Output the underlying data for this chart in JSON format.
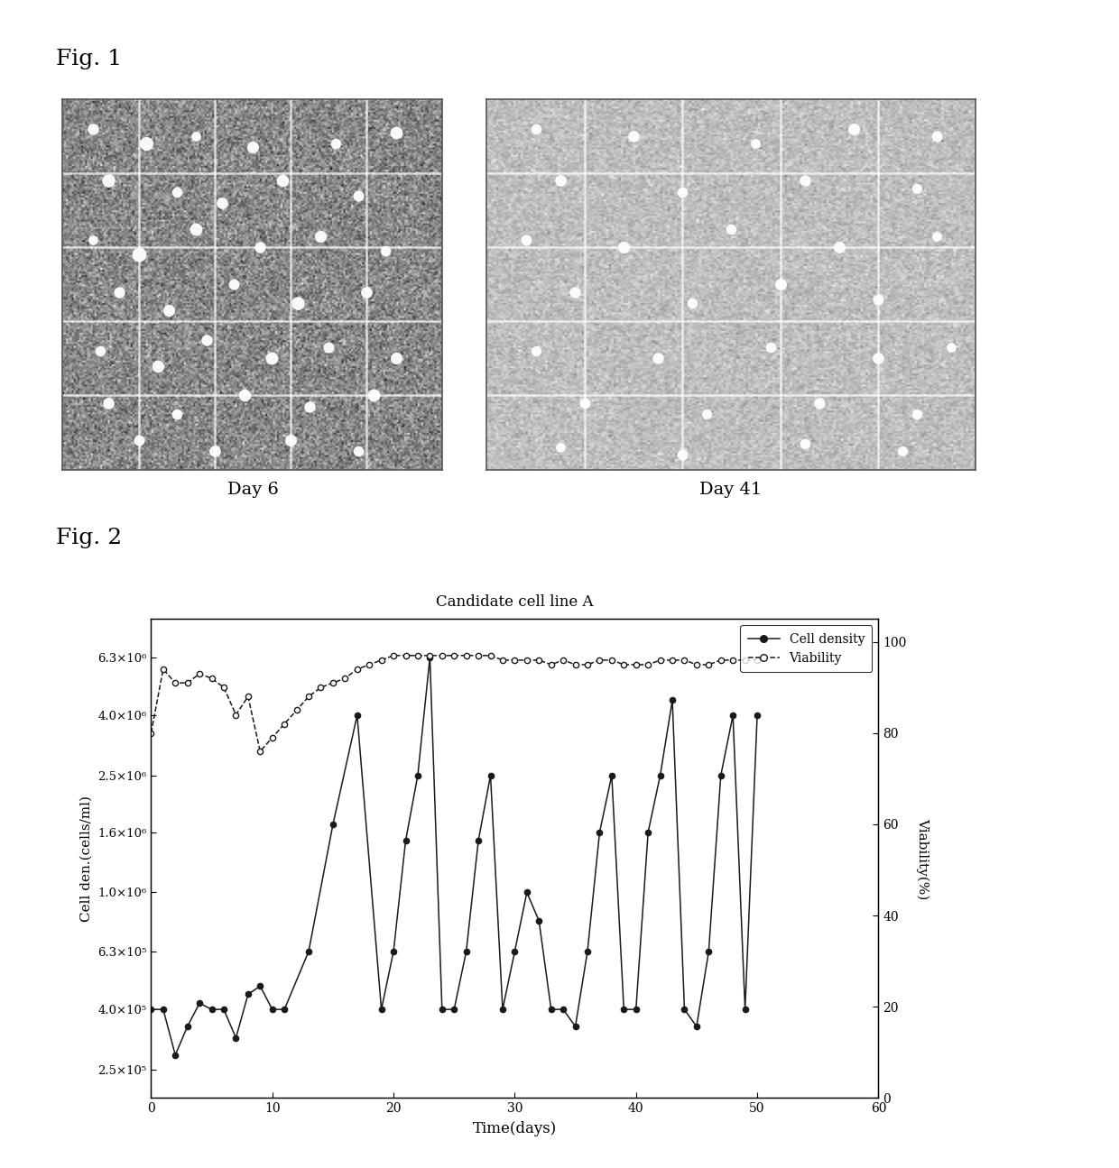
{
  "fig1_label": "Fig. 1",
  "fig2_label": "Fig. 2",
  "day6_label": "Day 6",
  "day41_label": "Day 41",
  "chart_title": "Candidate cell line A",
  "xlabel": "Time(days)",
  "ylabel_left": "Cell den.(cells/ml)",
  "ylabel_right": "Viability(%)",
  "legend_density": "Cell density",
  "legend_viability": "Viability",
  "xlim": [
    0,
    60
  ],
  "xticks": [
    0,
    10,
    20,
    30,
    40,
    50,
    60
  ],
  "yticks_right": [
    0,
    20,
    40,
    60,
    80,
    100
  ],
  "ylim_log_min": 200000.0,
  "ylim_log_max": 8500000.0,
  "ytick_labels_left": [
    "2.5×10⁵",
    "4.0×10⁵",
    "6.3×10⁵",
    "1.0×10⁶",
    "1.6×10⁶",
    "2.5×10⁶",
    "4.0×10⁶",
    "6.3×10⁶"
  ],
  "ytick_values_left": [
    250000,
    400000,
    630000,
    1000000,
    1600000,
    2500000,
    4000000,
    6300000
  ],
  "cell_density_x": [
    0,
    1,
    2,
    3,
    4,
    5,
    6,
    7,
    8,
    9,
    10,
    11,
    13,
    15,
    17,
    19,
    20,
    21,
    22,
    23,
    24,
    25,
    26,
    27,
    28,
    29,
    30,
    31,
    32,
    33,
    34,
    35,
    36,
    37,
    38,
    39,
    40,
    41,
    42,
    43,
    44,
    45,
    46,
    47,
    48,
    49,
    50
  ],
  "cell_density_y": [
    400000.0,
    400000.0,
    280000.0,
    350000.0,
    420000.0,
    400000.0,
    400000.0,
    320000.0,
    450000.0,
    480000.0,
    400000.0,
    400000.0,
    630000.0,
    1700000.0,
    4000000.0,
    400000.0,
    630000.0,
    1500000.0,
    2500000.0,
    6300000.0,
    400000.0,
    400000.0,
    630000.0,
    1500000.0,
    2500000.0,
    400000.0,
    630000.0,
    1000000.0,
    800000.0,
    400000.0,
    400000.0,
    350000.0,
    630000.0,
    1600000.0,
    2500000.0,
    400000.0,
    400000.0,
    1600000.0,
    2500000.0,
    4500000.0,
    400000.0,
    350000.0,
    630000.0,
    2500000.0,
    4000000.0,
    400000.0,
    4000000.0
  ],
  "viability_x": [
    0,
    1,
    2,
    3,
    4,
    5,
    6,
    7,
    8,
    9,
    10,
    11,
    12,
    13,
    14,
    15,
    16,
    17,
    18,
    19,
    20,
    21,
    22,
    23,
    24,
    25,
    26,
    27,
    28,
    29,
    30,
    31,
    32,
    33,
    34,
    35,
    36,
    37,
    38,
    39,
    40,
    41,
    42,
    43,
    44,
    45,
    46,
    47,
    48,
    49,
    50
  ],
  "viability_y": [
    80,
    94,
    91,
    91,
    93,
    92,
    90,
    84,
    88,
    76,
    79,
    82,
    85,
    88,
    90,
    91,
    92,
    94,
    95,
    96,
    97,
    97,
    97,
    97,
    97,
    97,
    97,
    97,
    97,
    96,
    96,
    96,
    96,
    95,
    96,
    95,
    95,
    96,
    96,
    95,
    95,
    95,
    96,
    96,
    96,
    95,
    95,
    96,
    96,
    96,
    96
  ],
  "bg_color": "#ffffff",
  "line_color": "#1a1a1a",
  "img1_color": "#888888",
  "img2_color": "#c0c0c0",
  "img1_noise_level": 0.12,
  "img2_noise_level": 0.06
}
